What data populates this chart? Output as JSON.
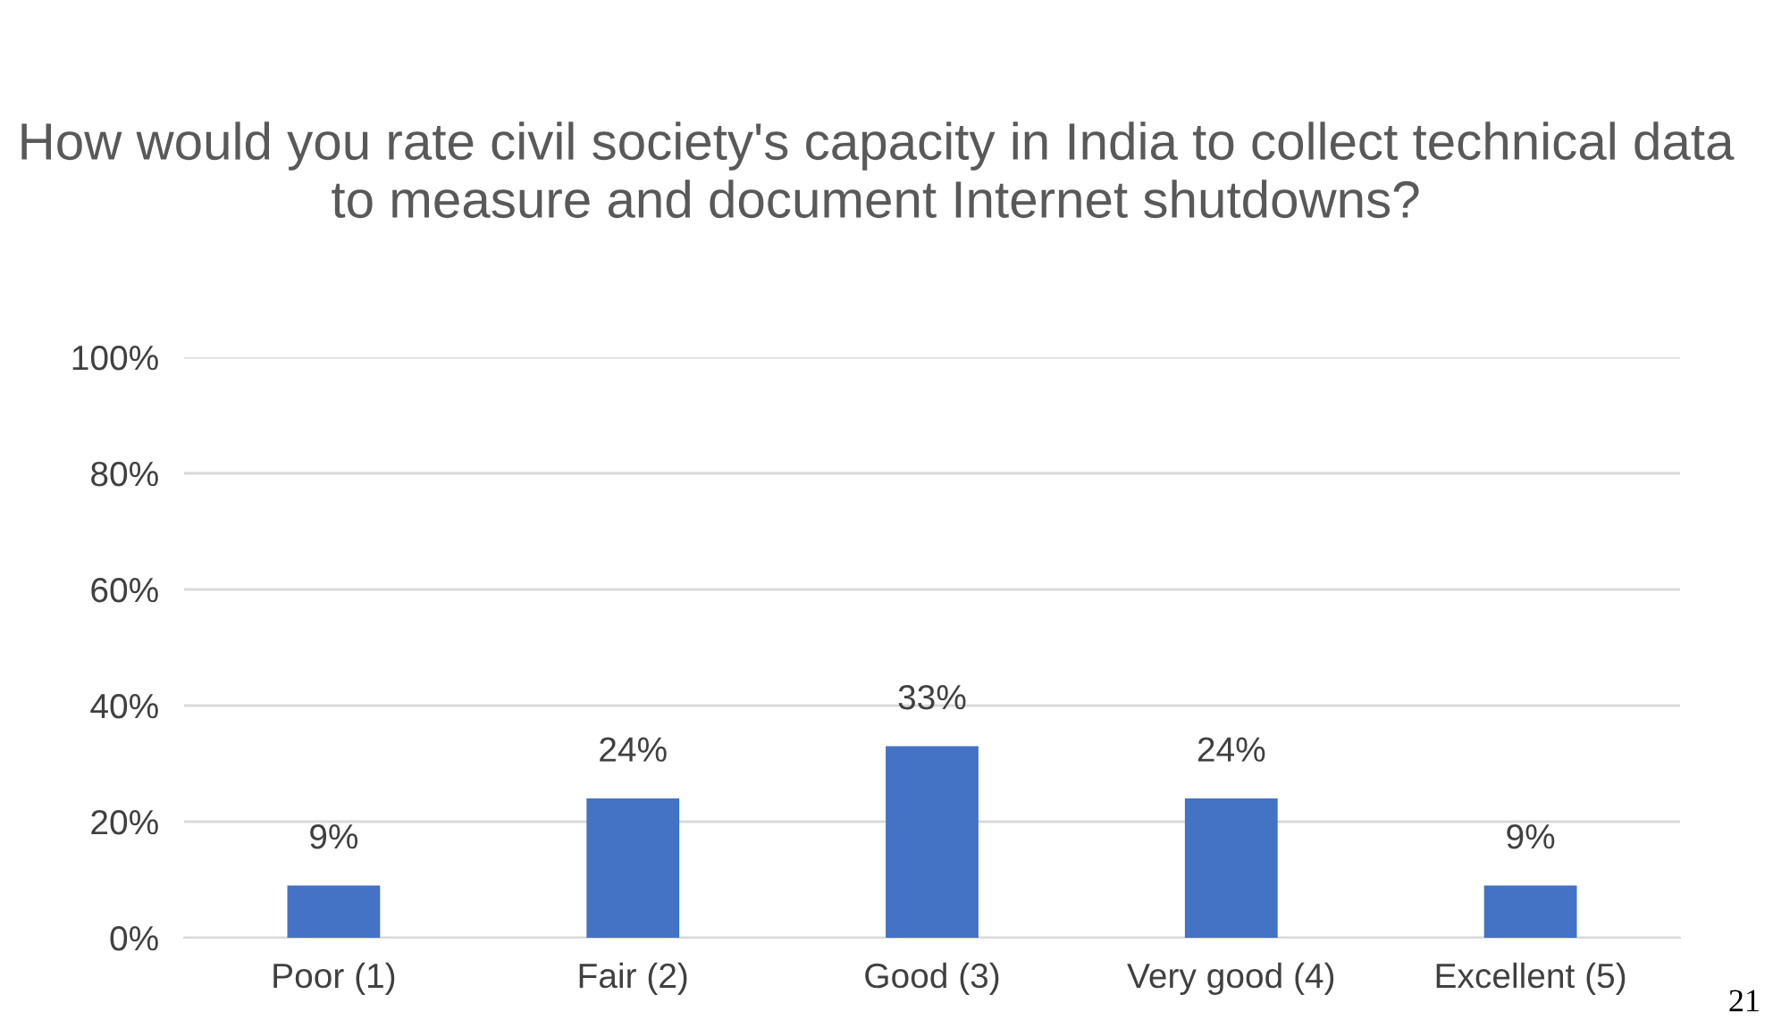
{
  "chart_data": {
    "type": "bar",
    "title": "How would you rate civil society's capacity in India to collect technical data to measure and document Internet shutdowns?",
    "categories": [
      "Poor (1)",
      "Fair (2)",
      "Good (3)",
      "Very good (4)",
      "Excellent (5)"
    ],
    "values": [
      9,
      24,
      33,
      24,
      9
    ],
    "value_labels": [
      "9%",
      "24%",
      "33%",
      "24%",
      "9%"
    ],
    "color": "#4472c4",
    "ylim": [
      0,
      100
    ],
    "yticks": [
      {
        "value": 0,
        "label": "0%"
      },
      {
        "value": 20,
        "label": "20%"
      },
      {
        "value": 40,
        "label": "40%"
      },
      {
        "value": 60,
        "label": "60%"
      },
      {
        "value": 80,
        "label": "80%"
      },
      {
        "value": 100,
        "label": "100%"
      }
    ],
    "grid": "y",
    "legend": false,
    "annotations": [
      "21"
    ]
  }
}
